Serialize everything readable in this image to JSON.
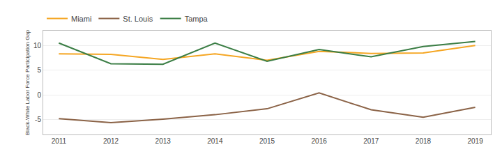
{
  "chart_data": {
    "type": "line",
    "x": [
      2011,
      2012,
      2013,
      2014,
      2015,
      2016,
      2017,
      2018,
      2019
    ],
    "series": [
      {
        "name": "Miami",
        "color": "#F5A623",
        "values": [
          8.3,
          8.2,
          7.2,
          8.3,
          7.0,
          8.8,
          8.4,
          8.5,
          10.0
        ]
      },
      {
        "name": "St. Louis",
        "color": "#8B6347",
        "values": [
          -4.8,
          -5.6,
          -4.9,
          -4.0,
          -2.8,
          0.4,
          -3.0,
          -4.5,
          -2.5
        ]
      },
      {
        "name": "Tampa",
        "color": "#3A7D44",
        "values": [
          10.5,
          6.3,
          6.2,
          10.5,
          6.8,
          9.2,
          7.7,
          9.8,
          10.8
        ]
      }
    ],
    "y_label": "Black-White Labor Force Participation Gap",
    "xlim": [
      2010.7,
      2019.3
    ],
    "xticks": [
      2011,
      2012,
      2013,
      2014,
      2015,
      2016,
      2017,
      2018,
      2019
    ],
    "ylim": [
      -8,
      13
    ],
    "yticks": [
      -5,
      0,
      5,
      10
    ],
    "grid": true,
    "legend": "top"
  }
}
